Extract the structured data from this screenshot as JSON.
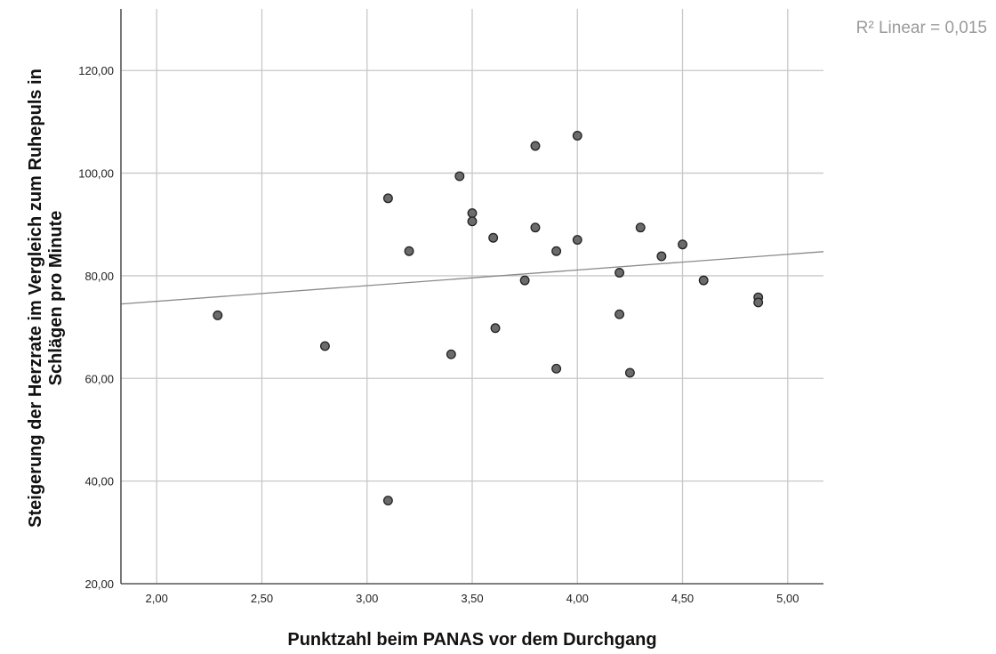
{
  "chart_data": {
    "type": "scatter",
    "xlabel": "Punktzahl beim PANAS vor dem Durchgang",
    "ylabel_lines": [
      "Steigerung der Herzrate im Vergleich zum Ruhepuls in",
      "Schlägen pro Minute"
    ],
    "xlim": [
      1.83,
      5.17
    ],
    "ylim": [
      20,
      132
    ],
    "xticks": [
      2.0,
      2.5,
      3.0,
      3.5,
      4.0,
      4.5,
      5.0
    ],
    "xtick_labels": [
      "2,00",
      "2,50",
      "3,00",
      "3,50",
      "4,00",
      "4,50",
      "5,00"
    ],
    "yticks": [
      20,
      40,
      60,
      80,
      100,
      120
    ],
    "ytick_labels": [
      "20,00",
      "40,00",
      "60,00",
      "80,00",
      "100,00",
      "120,00"
    ],
    "grid": true,
    "annotation": "R² Linear = 0,015",
    "fit_line": {
      "x": [
        1.83,
        5.17
      ],
      "y": [
        74.5,
        84.7
      ]
    },
    "points": [
      {
        "x": 2.29,
        "y": 72.3
      },
      {
        "x": 2.8,
        "y": 66.3
      },
      {
        "x": 3.1,
        "y": 95.1
      },
      {
        "x": 3.1,
        "y": 36.2
      },
      {
        "x": 3.2,
        "y": 84.8
      },
      {
        "x": 3.4,
        "y": 64.7
      },
      {
        "x": 3.44,
        "y": 99.4
      },
      {
        "x": 3.5,
        "y": 92.2
      },
      {
        "x": 3.5,
        "y": 90.6
      },
      {
        "x": 3.6,
        "y": 87.4
      },
      {
        "x": 3.61,
        "y": 69.8
      },
      {
        "x": 3.75,
        "y": 79.1
      },
      {
        "x": 3.8,
        "y": 105.3
      },
      {
        "x": 3.8,
        "y": 89.4
      },
      {
        "x": 3.9,
        "y": 84.8
      },
      {
        "x": 3.9,
        "y": 61.9
      },
      {
        "x": 4.0,
        "y": 107.3
      },
      {
        "x": 4.0,
        "y": 87.0
      },
      {
        "x": 4.2,
        "y": 80.6
      },
      {
        "x": 4.2,
        "y": 72.5
      },
      {
        "x": 4.25,
        "y": 61.1
      },
      {
        "x": 4.3,
        "y": 89.4
      },
      {
        "x": 4.4,
        "y": 83.8
      },
      {
        "x": 4.5,
        "y": 86.1
      },
      {
        "x": 4.6,
        "y": 79.1
      },
      {
        "x": 4.86,
        "y": 75.8
      },
      {
        "x": 4.86,
        "y": 74.8
      }
    ],
    "colors": {
      "point_fill": "#6b6b6b",
      "point_stroke": "#222222",
      "grid": "#c8c8c8",
      "axis": "#555555",
      "fit_line": "#8a8a8a",
      "annotation": "#9a9a9a"
    }
  }
}
